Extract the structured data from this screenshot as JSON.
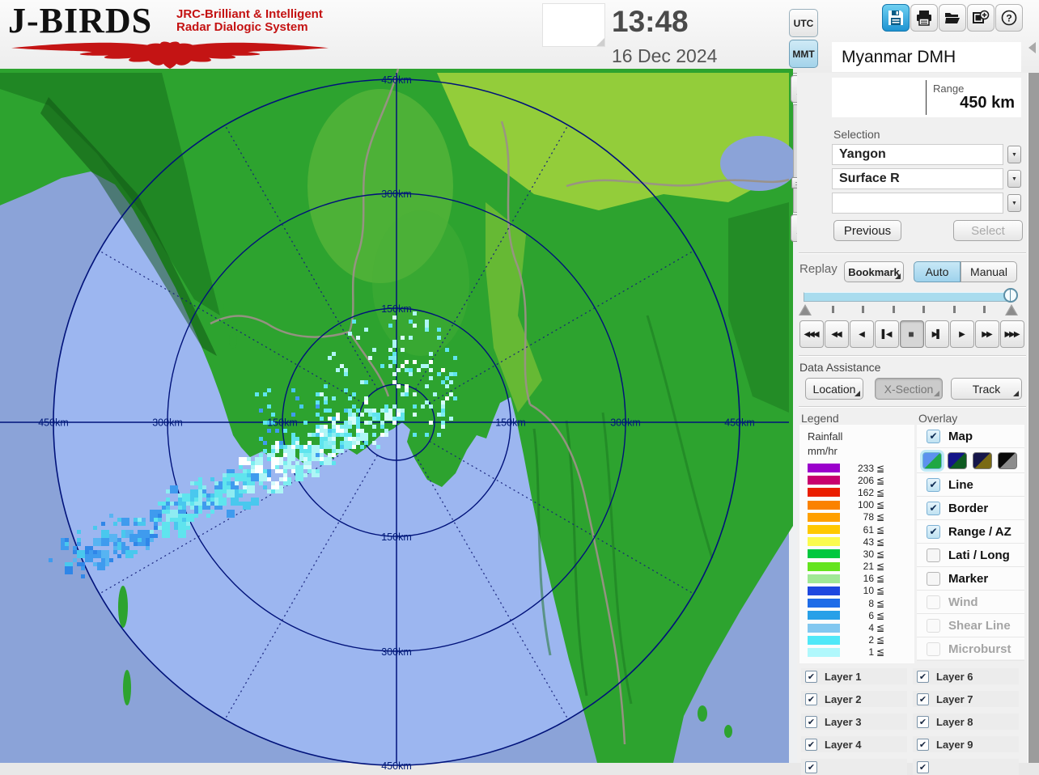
{
  "header": {
    "logo": {
      "title": "J-BIRDS",
      "tagline_line1": "JRC-Brilliant & Intelligent",
      "tagline_line2": "Radar  Dialogic  System"
    },
    "clock": {
      "time": "13:48",
      "date": "16 Dec 2024"
    },
    "timezone": {
      "utc_label": "UTC",
      "mmt_label": "MMT",
      "selected": "MMT"
    },
    "toolbar": {
      "buttons": [
        {
          "name": "save",
          "active": true
        },
        {
          "name": "print",
          "active": false
        },
        {
          "name": "open-folder",
          "active": false
        },
        {
          "name": "export-image",
          "active": false
        },
        {
          "name": "help",
          "active": false
        }
      ]
    }
  },
  "panel": {
    "site_name": "Myanmar DMH",
    "range": {
      "label": "Range",
      "value": "450 km"
    },
    "selection": {
      "label": "Selection",
      "dropdown1": "Yangon",
      "dropdown2": "Surface R",
      "dropdown3": "",
      "previous_label": "Previous",
      "select_label": "Select"
    },
    "replay": {
      "label": "Replay",
      "bookmark_label": "Bookmark",
      "auto_label": "Auto",
      "manual_label": "Manual",
      "playback": [
        {
          "name": "rewind-to-start-button",
          "glyph": "◀◀◀",
          "active": false
        },
        {
          "name": "fast-rewind-button",
          "glyph": "◀◀",
          "active": false
        },
        {
          "name": "play-reverse-button",
          "glyph": "◀",
          "active": false
        },
        {
          "name": "step-back-button",
          "glyph": "▌◀",
          "active": false
        },
        {
          "name": "stop-button",
          "glyph": "■",
          "active": true
        },
        {
          "name": "step-forward-button",
          "glyph": "▶▌",
          "active": false
        },
        {
          "name": "play-button",
          "glyph": "▶",
          "active": false
        },
        {
          "name": "fast-forward-button",
          "glyph": "▶▶",
          "active": false
        },
        {
          "name": "forward-to-end-button",
          "glyph": "▶▶▶",
          "active": false
        }
      ]
    },
    "data_assistance": {
      "label": "Data Assistance",
      "location_label": "Location",
      "xsection_label": "X-Section",
      "track_label": "Track"
    },
    "legend": {
      "label": "Legend",
      "title_line1": "Rainfall",
      "title_line2": "mm/hr",
      "unit_symbol": "≦",
      "entries": [
        {
          "value": "233",
          "color": "#9b00cc"
        },
        {
          "value": "206",
          "color": "#c8006e"
        },
        {
          "value": "162",
          "color": "#ea1e00"
        },
        {
          "value": "100",
          "color": "#fb8200"
        },
        {
          "value": "78",
          "color": "#ffa000"
        },
        {
          "value": "61",
          "color": "#ffc800"
        },
        {
          "value": "43",
          "color": "#fbfb4e"
        },
        {
          "value": "30",
          "color": "#00c83e"
        },
        {
          "value": "21",
          "color": "#64e41e"
        },
        {
          "value": "16",
          "color": "#a0e896"
        },
        {
          "value": "10",
          "color": "#1e48e0"
        },
        {
          "value": "8",
          "color": "#1e6ce8"
        },
        {
          "value": "6",
          "color": "#28a0e8"
        },
        {
          "value": "4",
          "color": "#82c8f0"
        },
        {
          "value": "2",
          "color": "#50e8f8"
        },
        {
          "value": "1",
          "color": "#b0f8fc"
        }
      ]
    },
    "overlay": {
      "label": "Overlay",
      "items": [
        {
          "label": "Map",
          "checked": true,
          "disabled": false
        },
        {
          "type": "map-styles"
        },
        {
          "label": "Line",
          "checked": true,
          "disabled": false
        },
        {
          "label": "Border",
          "checked": true,
          "disabled": false
        },
        {
          "label": "Range / AZ",
          "checked": true,
          "disabled": false
        },
        {
          "label": "Lati / Long",
          "checked": false,
          "disabled": false
        },
        {
          "label": "Marker",
          "checked": false,
          "disabled": false
        },
        {
          "label": "Wind",
          "checked": false,
          "disabled": true
        },
        {
          "label": "Shear Line",
          "checked": false,
          "disabled": true
        },
        {
          "label": "Microburst",
          "checked": false,
          "disabled": true
        }
      ],
      "map_styles": [
        {
          "sea": "#5c92ee",
          "land": "#1fa844",
          "selected": true
        },
        {
          "sea": "#141488",
          "land": "#0e5a20",
          "selected": false
        },
        {
          "sea": "#16164a",
          "land": "#7a6a14",
          "selected": false
        },
        {
          "sea": "#0a0a0a",
          "land": "#8c8c8c",
          "selected": false
        }
      ]
    },
    "layers": {
      "left": [
        {
          "label": "Layer 1",
          "checked": true,
          "partial": false
        },
        {
          "label": "Layer 2",
          "checked": true,
          "partial": false
        },
        {
          "label": "Layer 3",
          "checked": true,
          "partial": false
        },
        {
          "label": "Layer 4",
          "checked": true,
          "partial": false
        },
        {
          "label": "",
          "checked": true,
          "partial": true
        }
      ],
      "right": [
        {
          "label": "Layer 6",
          "checked": true,
          "partial": false
        },
        {
          "label": "Layer 7",
          "checked": true,
          "partial": false
        },
        {
          "label": "Layer 8",
          "checked": true,
          "partial": false
        },
        {
          "label": "Layer 9",
          "checked": true,
          "partial": false
        },
        {
          "label": "",
          "checked": true,
          "partial": true
        }
      ]
    }
  },
  "map": {
    "rings_km": [
      50,
      150,
      300,
      450
    ],
    "axis_labels": {
      "top": [
        "450km",
        "300km",
        "150km"
      ],
      "bottom": [
        "150km",
        "300km",
        "450km"
      ],
      "left": [
        "450km",
        "300km",
        "150km"
      ],
      "right": [
        "150km",
        "300km",
        "450km"
      ]
    }
  }
}
